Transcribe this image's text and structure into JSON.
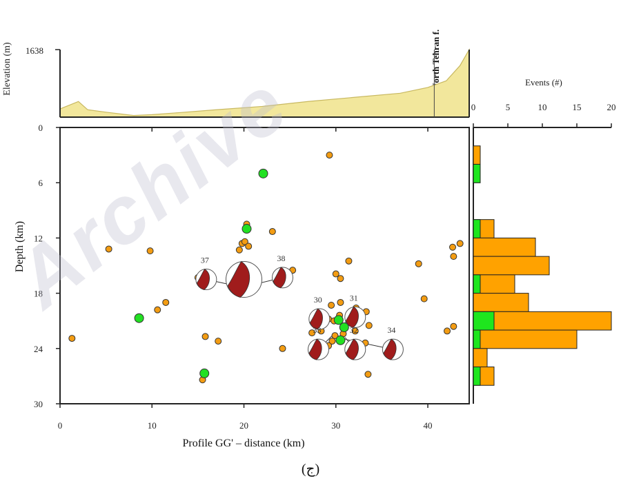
{
  "caption": "(ج)",
  "watermark_text": "Archive",
  "colors": {
    "eq_orange": "#f39c12",
    "eq_green": "#22e022",
    "hist_orange": "#ffa200",
    "hist_green": "#1ee61e",
    "terrain_fill": "#f2e79c",
    "mechanism_fill": "#a01c1c"
  },
  "chart_data": [
    {
      "type": "area",
      "name": "elevation-profile",
      "ylabel": "Elevation (m)",
      "yticks": [
        "1638"
      ],
      "ylim": [
        0,
        1638
      ],
      "xlim": [
        0,
        44.5
      ],
      "annotation": ">North Tehran f.",
      "x": [
        0,
        2,
        3,
        5,
        8,
        10,
        13,
        17,
        22,
        27,
        32,
        37,
        40,
        42,
        43.5,
        44.5
      ],
      "y": [
        200,
        380,
        180,
        120,
        40,
        60,
        110,
        180,
        260,
        380,
        480,
        580,
        720,
        880,
        1250,
        1638
      ]
    },
    {
      "type": "scatter",
      "name": "cross-section",
      "xlabel": "Profile GG' – distance (km)",
      "ylabel": "Depth (km)",
      "xlim": [
        0,
        44.5
      ],
      "ylim": [
        30,
        0
      ],
      "xticks": [
        "0",
        "10",
        "20",
        "30",
        "40"
      ],
      "yticks": [
        "0",
        "6",
        "12",
        "18",
        "24",
        "30"
      ],
      "series": [
        {
          "color": "orange",
          "points": [
            [
              29.3,
              3
            ],
            [
              20.3,
              10.5
            ],
            [
              23.1,
              11.3
            ],
            [
              19.8,
              12.6
            ],
            [
              20.1,
              12.4
            ],
            [
              20.5,
              12.9
            ],
            [
              5.3,
              13.2
            ],
            [
              9.8,
              13.4
            ],
            [
              19.5,
              13.3
            ],
            [
              42.7,
              13
            ],
            [
              43.5,
              12.6
            ],
            [
              42.8,
              14
            ],
            [
              31.4,
              14.5
            ],
            [
              39,
              14.8
            ],
            [
              25.3,
              15.5
            ],
            [
              30,
              15.9
            ],
            [
              30.5,
              16.4
            ],
            [
              15,
              16.3
            ],
            [
              39.6,
              18.6
            ],
            [
              11.5,
              19
            ],
            [
              10.6,
              19.8
            ],
            [
              29.5,
              19.3
            ],
            [
              30.5,
              19
            ],
            [
              32.2,
              19.6
            ],
            [
              29.2,
              20.8
            ],
            [
              30.4,
              20.4
            ],
            [
              29.8,
              21
            ],
            [
              31.7,
              20.5
            ],
            [
              33.3,
              20
            ],
            [
              33.6,
              21.5
            ],
            [
              27.4,
              22.3
            ],
            [
              28.4,
              22.1
            ],
            [
              29.9,
              22.6
            ],
            [
              30.8,
              22.4
            ],
            [
              32.1,
              22.1
            ],
            [
              29.6,
              23.2
            ],
            [
              28.2,
              23.6
            ],
            [
              29.2,
              23.7
            ],
            [
              33.2,
              23.4
            ],
            [
              1.3,
              22.9
            ],
            [
              15.8,
              22.7
            ],
            [
              17.2,
              23.2
            ],
            [
              24.2,
              24
            ],
            [
              42.1,
              22.1
            ],
            [
              42.8,
              21.6
            ],
            [
              33.5,
              26.8
            ],
            [
              15.5,
              27.4
            ]
          ]
        },
        {
          "color": "green",
          "points": [
            [
              22.1,
              5
            ],
            [
              20.3,
              11
            ],
            [
              8.6,
              20.7
            ],
            [
              30.3,
              20.9
            ],
            [
              30.9,
              21.7
            ],
            [
              30.5,
              23.1
            ],
            [
              15.7,
              26.7
            ]
          ]
        }
      ],
      "mechanisms": [
        {
          "id": "37",
          "x": 15.9,
          "y": 16.5,
          "event_x": 19.6,
          "event_y": 17.3
        },
        {
          "id": "38",
          "x": 24.2,
          "y": 16.3,
          "event_x": 21.3,
          "event_y": 17
        },
        {
          "id": "30",
          "x": 28.2,
          "y": 20.8,
          "event_x": 29.8,
          "event_y": 21
        },
        {
          "id": "31",
          "x": 32.1,
          "y": 20.6,
          "event_x": 31,
          "event_y": 21.2
        },
        {
          "id": "33",
          "x": 28.1,
          "y": 24.1,
          "event_x": 29.6,
          "event_y": 22.6
        },
        {
          "id": "32",
          "x": 32.1,
          "y": 24.1,
          "event_x": 31,
          "event_y": 22.8
        },
        {
          "id": "34",
          "x": 36.2,
          "y": 24.1,
          "event_x": 31,
          "event_y": 23
        }
      ],
      "big_mechanism": {
        "x": 20,
        "y": 16.5
      }
    },
    {
      "type": "bar",
      "name": "events-histogram",
      "orientation": "horizontal",
      "xlabel": "Events (#)",
      "xticks": [
        "0",
        "5",
        "10",
        "15",
        "20"
      ],
      "xlim": [
        0,
        20
      ],
      "bin_km": 2,
      "bins_start_km": [
        2,
        4,
        10,
        12,
        14,
        16,
        18,
        20,
        22,
        24,
        26
      ],
      "series": [
        {
          "name": "orange",
          "values": [
            1,
            1,
            3,
            9,
            11,
            6,
            8,
            20,
            15,
            2,
            3
          ]
        },
        {
          "name": "green",
          "values": [
            0,
            1,
            1,
            0,
            0,
            1,
            0,
            3,
            1,
            0,
            1
          ]
        }
      ]
    }
  ]
}
